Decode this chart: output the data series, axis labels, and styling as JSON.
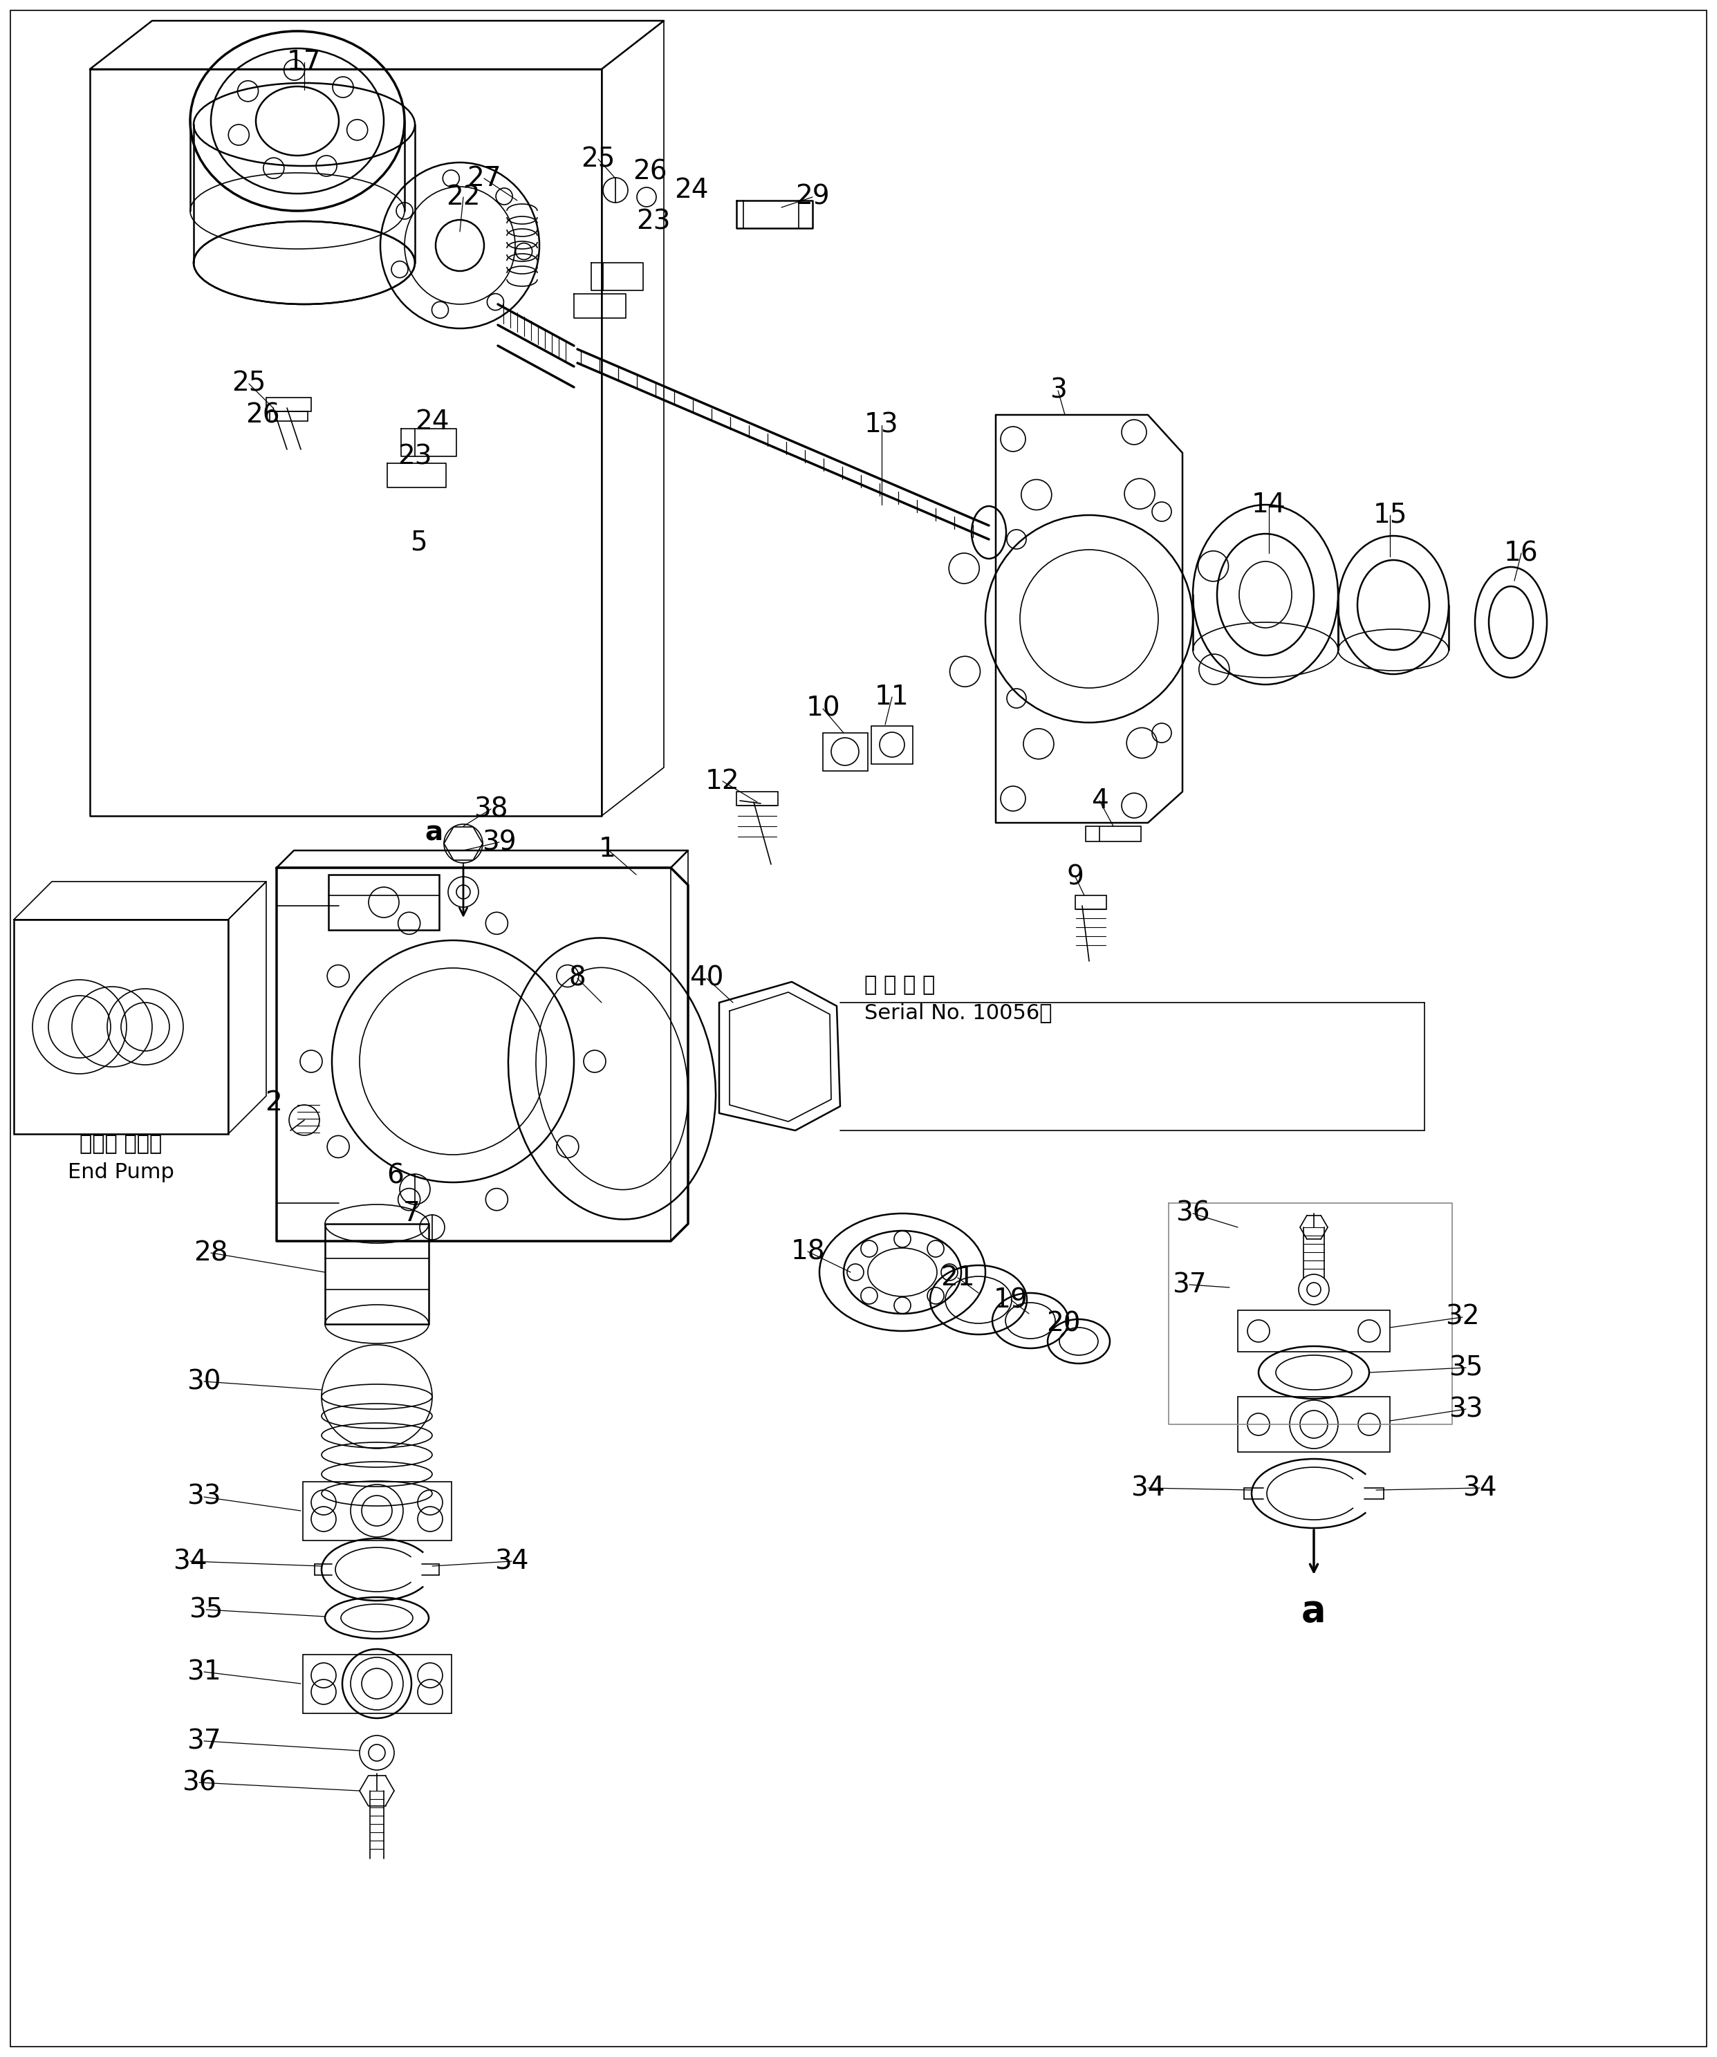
{
  "bg_color": "#ffffff",
  "line_color": "#000000",
  "fig_width": 24.83,
  "fig_height": 29.75,
  "lw_thin": 1.2,
  "lw_med": 1.8,
  "lw_thick": 2.5,
  "font_size": 28,
  "font_size_sm": 22,
  "font_size_lg": 38,
  "serial_line1": "適 用 号 機",
  "serial_line2": "Serial No. 10056～",
  "end_pump_jp": "エンド ポンプ",
  "end_pump_en": "End Pump"
}
